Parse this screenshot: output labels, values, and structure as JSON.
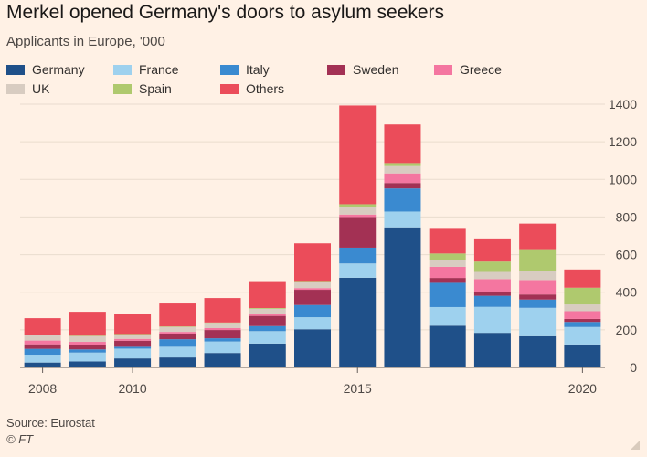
{
  "header": {
    "title": "Merkel opened Germany's doors to asylum seekers",
    "subtitle": "Applicants in Europe, '000"
  },
  "footer": {
    "source": "Source: Eurostat",
    "credit": "© FT"
  },
  "colors": {
    "background": "#fff1e5",
    "gridline": "#eadcce",
    "axis": "#66605c",
    "text": "#4d4845"
  },
  "chart_data": {
    "type": "bar",
    "stacked": true,
    "title": "Merkel opened Germany's doors to asylum seekers",
    "subtitle": "Applicants in Europe, '000",
    "xlabel": "",
    "ylabel": "",
    "ylim": [
      0,
      1400
    ],
    "y_ticks": [
      0,
      200,
      400,
      600,
      800,
      1000,
      1200,
      1400
    ],
    "y_axis_side": "right",
    "legend_position": "top",
    "grid": true,
    "categories": [
      "2008",
      "2009",
      "2010",
      "2011",
      "2012",
      "2013",
      "2014",
      "2015",
      "2016",
      "2017",
      "2018",
      "2019",
      "2020"
    ],
    "x_tick_labels": [
      {
        "category": "2008",
        "label": "2008"
      },
      {
        "category": "2010",
        "label": "2010"
      },
      {
        "category": "2015",
        "label": "2015"
      },
      {
        "category": "2020",
        "label": "2020"
      }
    ],
    "series": [
      {
        "name": "Germany",
        "color": "#1f5089",
        "values": [
          26,
          32,
          48,
          53,
          77,
          127,
          203,
          477,
          745,
          222,
          184,
          166,
          122
        ]
      },
      {
        "name": "France",
        "color": "#9ed1ee",
        "values": [
          42,
          47,
          52,
          57,
          61,
          66,
          64,
          76,
          84,
          99,
          138,
          151,
          93
        ]
      },
      {
        "name": "Italy",
        "color": "#3a8ad0",
        "values": [
          31,
          17,
          10,
          40,
          17,
          27,
          65,
          84,
          123,
          129,
          59,
          44,
          27
        ]
      },
      {
        "name": "Sweden",
        "color": "#a33154",
        "values": [
          24,
          24,
          32,
          30,
          44,
          54,
          81,
          163,
          29,
          26,
          22,
          27,
          16
        ]
      },
      {
        "name": "Greece",
        "color": "#f476a0",
        "values": [
          20,
          16,
          10,
          9,
          10,
          8,
          9,
          13,
          51,
          59,
          67,
          77,
          41
        ]
      },
      {
        "name": "UK",
        "color": "#d8ccc1",
        "values": [
          28,
          30,
          23,
          26,
          28,
          30,
          32,
          40,
          39,
          34,
          38,
          46,
          36
        ]
      },
      {
        "name": "Spain",
        "color": "#afc96e",
        "values": [
          4,
          3,
          3,
          3,
          2,
          4,
          6,
          15,
          16,
          37,
          55,
          118,
          89
        ]
      },
      {
        "name": "Others",
        "color": "#eb4c5a",
        "values": [
          87,
          127,
          104,
          122,
          130,
          143,
          200,
          525,
          205,
          131,
          123,
          136,
          97
        ]
      }
    ]
  }
}
